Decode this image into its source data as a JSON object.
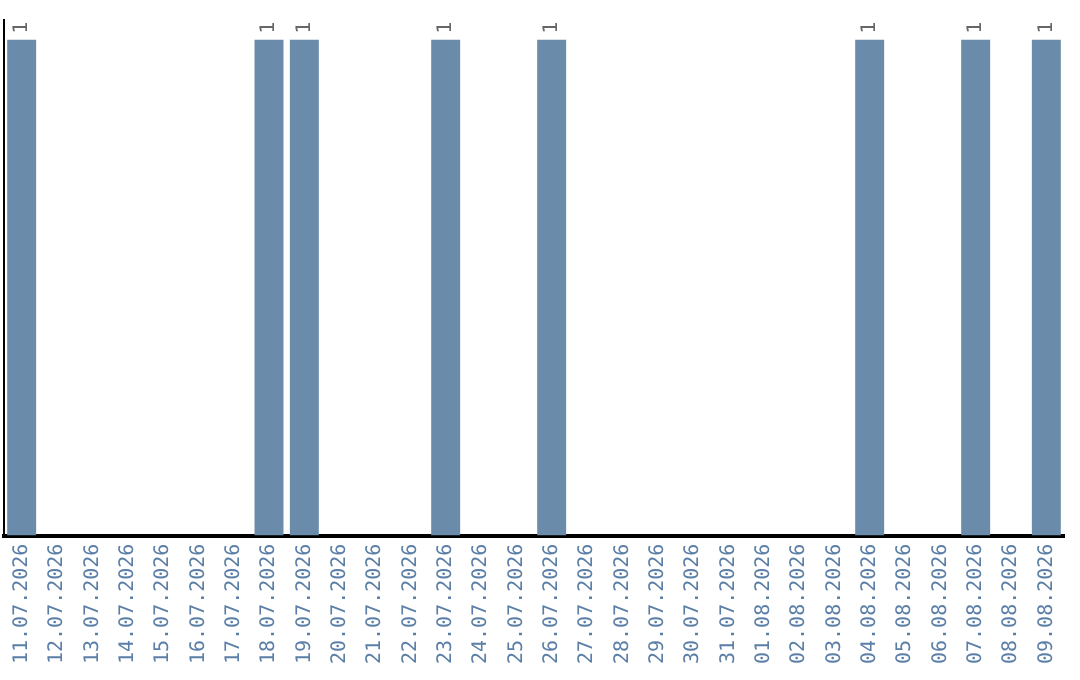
{
  "chart_data": {
    "type": "bar",
    "categories": [
      "11.07.2026",
      "12.07.2026",
      "13.07.2026",
      "14.07.2026",
      "15.07.2026",
      "16.07.2026",
      "17.07.2026",
      "18.07.2026",
      "19.07.2026",
      "20.07.2026",
      "21.07.2026",
      "22.07.2026",
      "23.07.2026",
      "24.07.2026",
      "25.07.2026",
      "26.07.2026",
      "27.07.2026",
      "28.07.2026",
      "29.07.2026",
      "30.07.2026",
      "31.07.2026",
      "01.08.2026",
      "02.08.2026",
      "03.08.2026",
      "04.08.2026",
      "05.08.2026",
      "06.08.2026",
      "07.08.2026",
      "08.08.2026",
      "09.08.2026"
    ],
    "values": [
      1,
      0,
      0,
      0,
      0,
      0,
      0,
      1,
      1,
      0,
      0,
      0,
      1,
      0,
      0,
      1,
      0,
      0,
      0,
      0,
      0,
      0,
      0,
      0,
      1,
      0,
      0,
      1,
      0,
      1
    ],
    "value_labels": [
      "1",
      null,
      null,
      null,
      null,
      null,
      null,
      "1",
      "1",
      null,
      null,
      null,
      "1",
      null,
      null,
      "1",
      null,
      null,
      null,
      null,
      null,
      null,
      null,
      null,
      "1",
      null,
      null,
      "1",
      null,
      "1"
    ],
    "color": "#6a8caa",
    "ylim": [
      0,
      1.04
    ],
    "tick_labels": "x",
    "grid": false,
    "legend": false
  }
}
